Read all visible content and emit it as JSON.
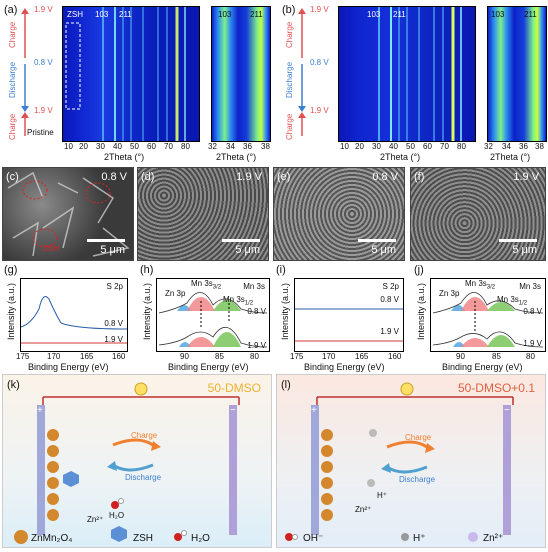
{
  "panels": {
    "a": "(a)",
    "b": "(b)",
    "c": "(c)",
    "d": "(d)",
    "e": "(e)",
    "f": "(f)",
    "g": "(g)",
    "h": "(h)",
    "i": "(i)",
    "j": "(j)",
    "k": "(k)",
    "l": "(l)"
  },
  "xrd": {
    "left_axis": {
      "top": "1.9 V",
      "mid": "0.8 V",
      "bot": "1.9 V",
      "pristine": "Pristine",
      "charge": "Charge",
      "discharge": "Discharge"
    },
    "xlabel": "2Theta (°)",
    "xticks_main": [
      "10",
      "20",
      "30",
      "40",
      "50",
      "60",
      "70",
      "80"
    ],
    "xticks_zoom": [
      "32",
      "34",
      "36",
      "38"
    ],
    "peak_labels": [
      "103",
      "211"
    ],
    "zsh": "ZSH"
  },
  "sem": [
    {
      "voltage": "0.8 V",
      "scale": "5 μm",
      "tag": "ZSH"
    },
    {
      "voltage": "1.9 V",
      "scale": "5 μm"
    },
    {
      "voltage": "0.8 V",
      "scale": "5 μm"
    },
    {
      "voltage": "1.9 V",
      "scale": "5 μm"
    }
  ],
  "xps": {
    "ylabel": "Intensity (a.u.)",
    "xlabel": "Binding Energy (eV)",
    "s2p_title": "S 2p",
    "mn3s_title": "Mn 3s",
    "s2p_ticks": [
      "175",
      "170",
      "165",
      "160"
    ],
    "mn3s_ticks": [
      "90",
      "85",
      "80"
    ],
    "v08": "0.8 V",
    "v19": "1.9 V",
    "zn3p": "Zn 3p",
    "mn32": "Mn 3s",
    "mn32_sub": "3/2",
    "mn12": "Mn 3s",
    "mn12_sub": "1/2"
  },
  "schematic": {
    "k_title": "50-DMSO",
    "l_title": "50-DMSO+0.1",
    "charge": "Charge",
    "discharge": "Discharge",
    "h2o": "H₂O",
    "zn2": "Zn²⁺",
    "hplus": "H⁺",
    "legend_k": [
      "ZnMn₂O₄",
      "ZSH",
      "H₂O"
    ],
    "legend_l": [
      "OH⁻",
      "H⁺",
      "Zn²⁺"
    ],
    "plus": "+",
    "minus": "−"
  },
  "chart_data": [
    {
      "type": "line",
      "title": "S 2p",
      "panel": "g",
      "xlabel": "Binding Energy (eV)",
      "ylabel": "Intensity (a.u.)",
      "xlim": [
        175,
        160
      ],
      "series": [
        {
          "name": "0.8 V"
        },
        {
          "name": "1.9 V"
        }
      ]
    },
    {
      "type": "line",
      "title": "Mn 3s",
      "panel": "h",
      "xlabel": "Binding Energy (eV)",
      "ylabel": "Intensity (a.u.)",
      "xlim": [
        93,
        80
      ],
      "series": [
        {
          "name": "0.8 V"
        },
        {
          "name": "1.9 V"
        }
      ]
    },
    {
      "type": "line",
      "title": "S 2p",
      "panel": "i",
      "xlabel": "Binding Energy (eV)",
      "ylabel": "Intensity (a.u.)",
      "xlim": [
        175,
        160
      ],
      "series": [
        {
          "name": "0.8 V"
        },
        {
          "name": "1.9 V"
        }
      ]
    },
    {
      "type": "line",
      "title": "Mn 3s",
      "panel": "j",
      "xlabel": "Binding Energy (eV)",
      "ylabel": "Intensity (a.u.)",
      "xlim": [
        93,
        80
      ],
      "series": [
        {
          "name": "0.8 V"
        },
        {
          "name": "1.9 V"
        }
      ]
    }
  ],
  "colors": {
    "charge": "#e05050",
    "discharge": "#3f7fd0",
    "xps_top": "#2b5fa8",
    "xps_bot": "#d23a3a"
  }
}
